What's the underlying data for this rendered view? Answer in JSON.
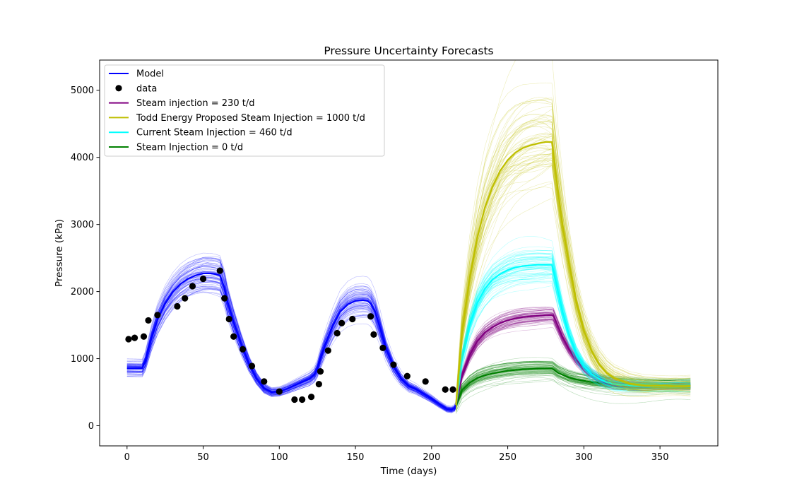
{
  "chart_data": {
    "type": "line",
    "title": "Pressure Uncertainty Forecasts",
    "xlabel": "Time (days)",
    "ylabel": "Pressure (kPa)",
    "xlim": [
      -18,
      388
    ],
    "ylim": [
      -300,
      5450
    ],
    "x_ticks": [
      0,
      50,
      100,
      150,
      200,
      250,
      300,
      350
    ],
    "y_ticks": [
      0,
      1000,
      2000,
      3000,
      4000,
      5000
    ],
    "grid": false,
    "legend_position": "top-left",
    "colors": {
      "model": "#0000ff",
      "data": "#000000",
      "steam_230": "#800080",
      "steam_1000": "#bfbf00",
      "steam_460": "#00ffff",
      "steam_0": "#008000"
    },
    "legend": [
      {
        "label": "Model",
        "color": "#0000ff",
        "kind": "line"
      },
      {
        "label": "data",
        "color": "#000000",
        "kind": "marker"
      },
      {
        "label": "Steam injection = 230 t/d",
        "color": "#800080",
        "kind": "line"
      },
      {
        "label": "Todd Energy Proposed Steam Injection = 1000 t/d",
        "color": "#bfbf00",
        "kind": "line"
      },
      {
        "label": "Current Steam Injection = 460 t/d",
        "color": "#00ffff",
        "kind": "line"
      },
      {
        "label": "Steam Injection = 0 t/d",
        "color": "#008000",
        "kind": "line"
      }
    ],
    "model": {
      "x": [
        0,
        10,
        12,
        16,
        20,
        25,
        30,
        35,
        40,
        45,
        50,
        55,
        58,
        61,
        62,
        64,
        66,
        70,
        75,
        80,
        85,
        90,
        95,
        100,
        105,
        110,
        115,
        120,
        123,
        125,
        127,
        130,
        135,
        140,
        145,
        150,
        155,
        158,
        160,
        163,
        166,
        170,
        175,
        180,
        185,
        190,
        195,
        200,
        205,
        210,
        213,
        215,
        216
      ],
      "y": [
        860,
        860,
        960,
        1300,
        1580,
        1820,
        1990,
        2110,
        2190,
        2240,
        2270,
        2270,
        2260,
        2240,
        2180,
        2050,
        1850,
        1550,
        1220,
        930,
        710,
        560,
        500,
        510,
        550,
        600,
        650,
        700,
        760,
        850,
        1000,
        1200,
        1480,
        1700,
        1810,
        1860,
        1870,
        1860,
        1820,
        1690,
        1470,
        1150,
        880,
        700,
        590,
        540,
        470,
        400,
        320,
        250,
        240,
        260,
        310
      ]
    },
    "data": {
      "x": [
        1,
        5,
        11,
        14,
        20,
        33,
        38,
        43,
        50,
        61,
        64,
        67,
        70,
        76,
        82,
        90,
        100,
        110,
        115,
        121,
        126,
        127,
        132,
        138,
        141,
        148,
        160,
        162,
        168,
        175,
        184,
        196,
        209,
        214
      ],
      "y": [
        1290,
        1310,
        1330,
        1570,
        1650,
        1780,
        1900,
        2080,
        2190,
        2310,
        1900,
        1590,
        1330,
        1140,
        890,
        660,
        510,
        390,
        390,
        430,
        620,
        810,
        1120,
        1380,
        1530,
        1590,
        1630,
        1360,
        1160,
        910,
        740,
        660,
        540,
        540
      ]
    },
    "forecasts": [
      {
        "name": "Steam injection = 230 t/d",
        "x": [
          216,
          220,
          225,
          230,
          235,
          240,
          245,
          250,
          255,
          260,
          265,
          270,
          275,
          279,
          280,
          283,
          286,
          290,
          295,
          300,
          305,
          310,
          315,
          320,
          330,
          340,
          350,
          360,
          370
        ],
        "y": [
          310,
          750,
          1050,
          1260,
          1390,
          1470,
          1530,
          1570,
          1600,
          1620,
          1630,
          1640,
          1650,
          1650,
          1640,
          1480,
          1320,
          1150,
          980,
          860,
          770,
          700,
          660,
          630,
          600,
          590,
          590,
          590,
          590
        ]
      },
      {
        "name": "Todd Energy Proposed Steam Injection = 1000 t/d",
        "x": [
          216,
          220,
          225,
          230,
          235,
          240,
          245,
          250,
          255,
          260,
          265,
          270,
          275,
          279,
          280,
          283,
          286,
          290,
          295,
          300,
          305,
          310,
          315,
          320,
          330,
          340,
          350,
          360,
          370
        ],
        "y": [
          310,
          1400,
          2200,
          2800,
          3250,
          3560,
          3800,
          3960,
          4070,
          4140,
          4180,
          4210,
          4230,
          4230,
          4050,
          3500,
          3000,
          2450,
          1850,
          1420,
          1120,
          920,
          790,
          710,
          630,
          600,
          595,
          590,
          590
        ]
      },
      {
        "name": "Current Steam Injection = 460 t/d",
        "x": [
          216,
          220,
          225,
          230,
          235,
          240,
          245,
          250,
          255,
          260,
          265,
          270,
          275,
          279,
          280,
          283,
          286,
          290,
          295,
          300,
          305,
          310,
          315,
          320,
          330,
          340,
          350,
          360,
          370
        ],
        "y": [
          310,
          1000,
          1500,
          1830,
          2040,
          2180,
          2260,
          2320,
          2360,
          2380,
          2390,
          2400,
          2400,
          2400,
          2320,
          2000,
          1700,
          1380,
          1080,
          890,
          770,
          700,
          650,
          620,
          600,
          590,
          590,
          590,
          590
        ]
      },
      {
        "name": "Steam Injection = 0 t/d",
        "x": [
          216,
          220,
          225,
          230,
          235,
          240,
          245,
          250,
          255,
          260,
          265,
          270,
          275,
          279,
          280,
          283,
          286,
          290,
          295,
          300,
          305,
          310,
          315,
          320,
          330,
          340,
          350,
          360,
          370
        ],
        "y": [
          310,
          530,
          640,
          710,
          750,
          780,
          800,
          820,
          830,
          840,
          845,
          850,
          850,
          850,
          840,
          790,
          760,
          720,
          690,
          670,
          650,
          640,
          630,
          620,
          610,
          600,
          600,
          600,
          600
        ]
      }
    ]
  }
}
